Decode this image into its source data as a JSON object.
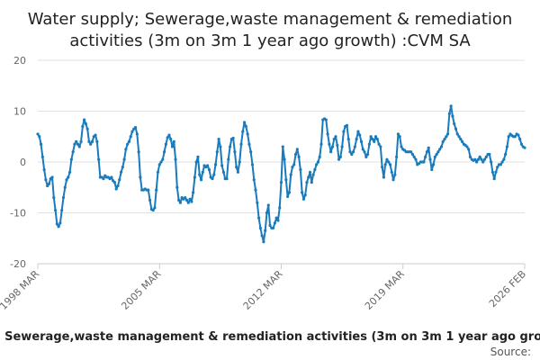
{
  "chart_data": {
    "type": "line",
    "title": [
      "Water supply; Sewerage,waste management & remediation",
      "activities (3m on 3m 1 year ago growth) :CVM SA"
    ],
    "series_name": "Water supply; Sewerage,waste management & remediation activities (3m on 3m 1 year ago growth) :CVM SA",
    "source_label": "Source:",
    "x_start_label": "1998 MAR",
    "x_tick_labels": [
      "1998 MAR",
      "2005 MAR",
      "2012 MAR",
      "2019 MAR",
      "2026 FEB"
    ],
    "y_ticks": [
      -20,
      -10,
      0,
      10,
      20
    ],
    "ylim": [
      -20,
      20
    ],
    "color": "#1a7bbc",
    "values": [
      5.5,
      5.0,
      3.5,
      1.0,
      -1.5,
      -3.5,
      -4.7,
      -4.3,
      -3.3,
      -3.0,
      -7.0,
      -9.5,
      -12.2,
      -12.7,
      -12.0,
      -9.5,
      -7.0,
      -5.0,
      -3.5,
      -3.0,
      -2.0,
      0.5,
      2.0,
      3.5,
      4.0,
      3.5,
      3.0,
      4.0,
      7.0,
      8.3,
      7.5,
      6.5,
      4.0,
      3.5,
      4.0,
      5.0,
      5.3,
      4.0,
      0.5,
      -3.0,
      -3.0,
      -3.3,
      -2.7,
      -3.0,
      -3.0,
      -3.3,
      -3.0,
      -3.7,
      -4.0,
      -5.3,
      -4.7,
      -3.5,
      -2.0,
      -1.0,
      0.5,
      2.5,
      3.5,
      4.0,
      5.0,
      6.0,
      6.5,
      6.8,
      5.5,
      2.0,
      -3.0,
      -5.5,
      -5.5,
      -5.3,
      -5.5,
      -5.5,
      -7.5,
      -9.3,
      -9.5,
      -9.0,
      -5.5,
      -2.0,
      -0.5,
      0.0,
      0.5,
      2.0,
      3.5,
      4.8,
      5.3,
      4.5,
      3.0,
      4.0,
      0.5,
      -5.0,
      -7.5,
      -8.0,
      -7.0,
      -7.3,
      -7.0,
      -7.5,
      -8.0,
      -7.3,
      -7.8,
      -6.0,
      -3.0,
      0.0,
      1.0,
      -2.5,
      -3.5,
      -2.0,
      -0.7,
      -1.0,
      -0.7,
      -1.5,
      -3.0,
      -3.3,
      -2.5,
      -0.5,
      2.0,
      4.5,
      3.0,
      -0.7,
      -2.0,
      -3.3,
      -3.3,
      0.5,
      3.0,
      4.5,
      4.7,
      2.0,
      -1.0,
      -2.0,
      0.0,
      3.5,
      6.0,
      7.8,
      7.0,
      5.5,
      3.5,
      2.0,
      -0.5,
      -3.5,
      -5.5,
      -8.0,
      -11.0,
      -13.0,
      -14.5,
      -15.7,
      -13.5,
      -10.0,
      -8.5,
      -12.5,
      -13.0,
      -13.0,
      -12.0,
      -11.0,
      -11.5,
      -9.0,
      -4.0,
      3.0,
      0.5,
      -3.5,
      -6.8,
      -6.0,
      -2.5,
      -1.0,
      -0.5,
      1.5,
      2.5,
      1.0,
      -1.5,
      -6.0,
      -7.3,
      -6.5,
      -4.0,
      -3.0,
      -2.0,
      -4.0,
      -2.5,
      -1.5,
      -0.5,
      0.0,
      1.0,
      3.5,
      8.3,
      8.5,
      8.3,
      5.5,
      3.5,
      2.0,
      3.0,
      4.5,
      5.0,
      3.3,
      0.5,
      1.0,
      3.0,
      6.0,
      7.0,
      7.2,
      4.5,
      2.0,
      1.5,
      2.0,
      3.0,
      4.5,
      6.0,
      5.3,
      4.0,
      2.5,
      2.0,
      1.0,
      1.5,
      3.5,
      5.0,
      4.5,
      4.0,
      5.0,
      4.5,
      3.5,
      3.0,
      -1.0,
      -3.0,
      -0.5,
      0.5,
      0.0,
      -0.5,
      -2.0,
      -3.5,
      -2.5,
      1.0,
      5.5,
      5.0,
      3.0,
      2.5,
      2.3,
      2.0,
      2.0,
      2.0,
      2.0,
      1.5,
      1.0,
      0.5,
      -0.5,
      -0.3,
      0.0,
      0.0,
      0.0,
      1.0,
      2.0,
      2.8,
      0.5,
      -1.5,
      -0.5,
      1.0,
      1.5,
      2.0,
      2.5,
      3.0,
      4.0,
      4.5,
      5.0,
      5.5,
      9.5,
      11.0,
      9.0,
      7.5,
      6.5,
      5.5,
      5.0,
      4.5,
      4.0,
      3.5,
      3.3,
      3.0,
      2.5,
      1.0,
      0.5,
      0.3,
      0.5,
      0.0,
      0.5,
      1.0,
      0.5,
      0.0,
      0.5,
      1.0,
      1.5,
      1.5,
      0.0,
      -2.0,
      -3.3,
      -2.0,
      -1.0,
      -0.5,
      -0.5,
      0.0,
      0.5,
      1.5,
      3.0,
      5.0,
      5.5,
      5.2,
      5.0,
      5.0,
      5.5,
      5.3,
      4.5,
      3.5,
      3.0,
      2.8
    ]
  }
}
